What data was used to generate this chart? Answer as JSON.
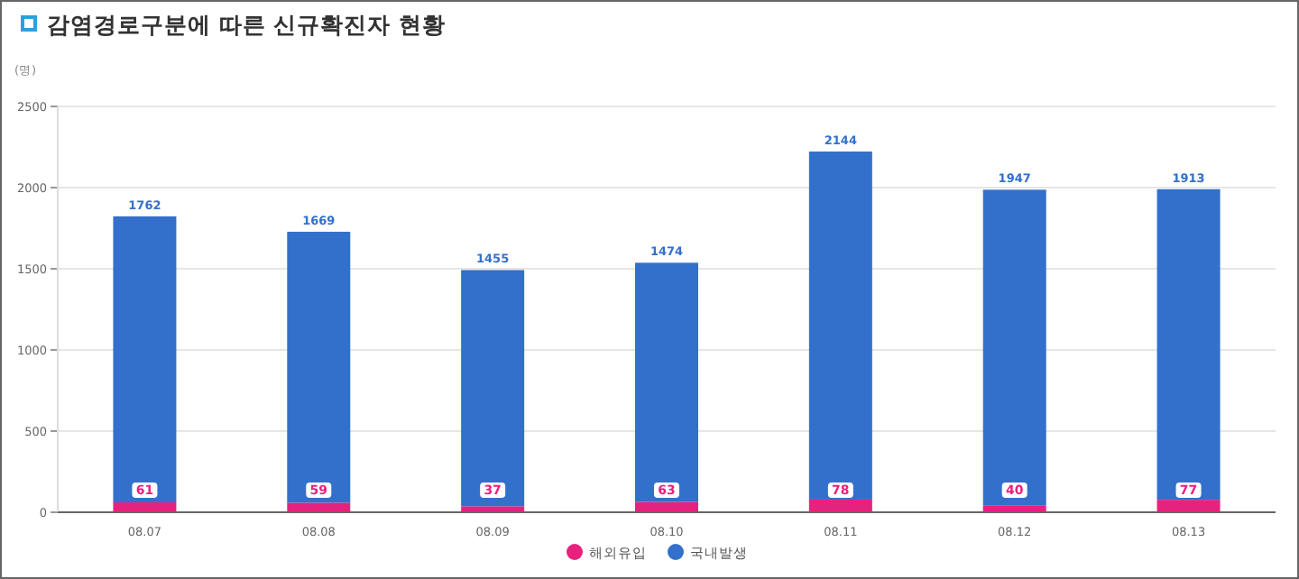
{
  "chart_data": {
    "type": "bar",
    "title": "감염경로구분에 따른 신규확진자 현황",
    "ylabel": "(명)",
    "categories": [
      "08.07",
      "08.08",
      "08.09",
      "08.10",
      "08.11",
      "08.12",
      "08.13"
    ],
    "series": [
      {
        "name": "해외유입",
        "color": "#e8217f",
        "values": [
          61,
          59,
          37,
          63,
          78,
          40,
          77
        ]
      },
      {
        "name": "국내발생",
        "color": "#3370cc",
        "values": [
          1762,
          1669,
          1455,
          1474,
          2144,
          1947,
          1913
        ]
      }
    ],
    "stacked": true,
    "ylim": [
      0,
      2500
    ],
    "yticks": [
      0,
      500,
      1000,
      1500,
      2000,
      2500
    ],
    "grid": "y",
    "legend": "bottom",
    "data_labels": true
  }
}
